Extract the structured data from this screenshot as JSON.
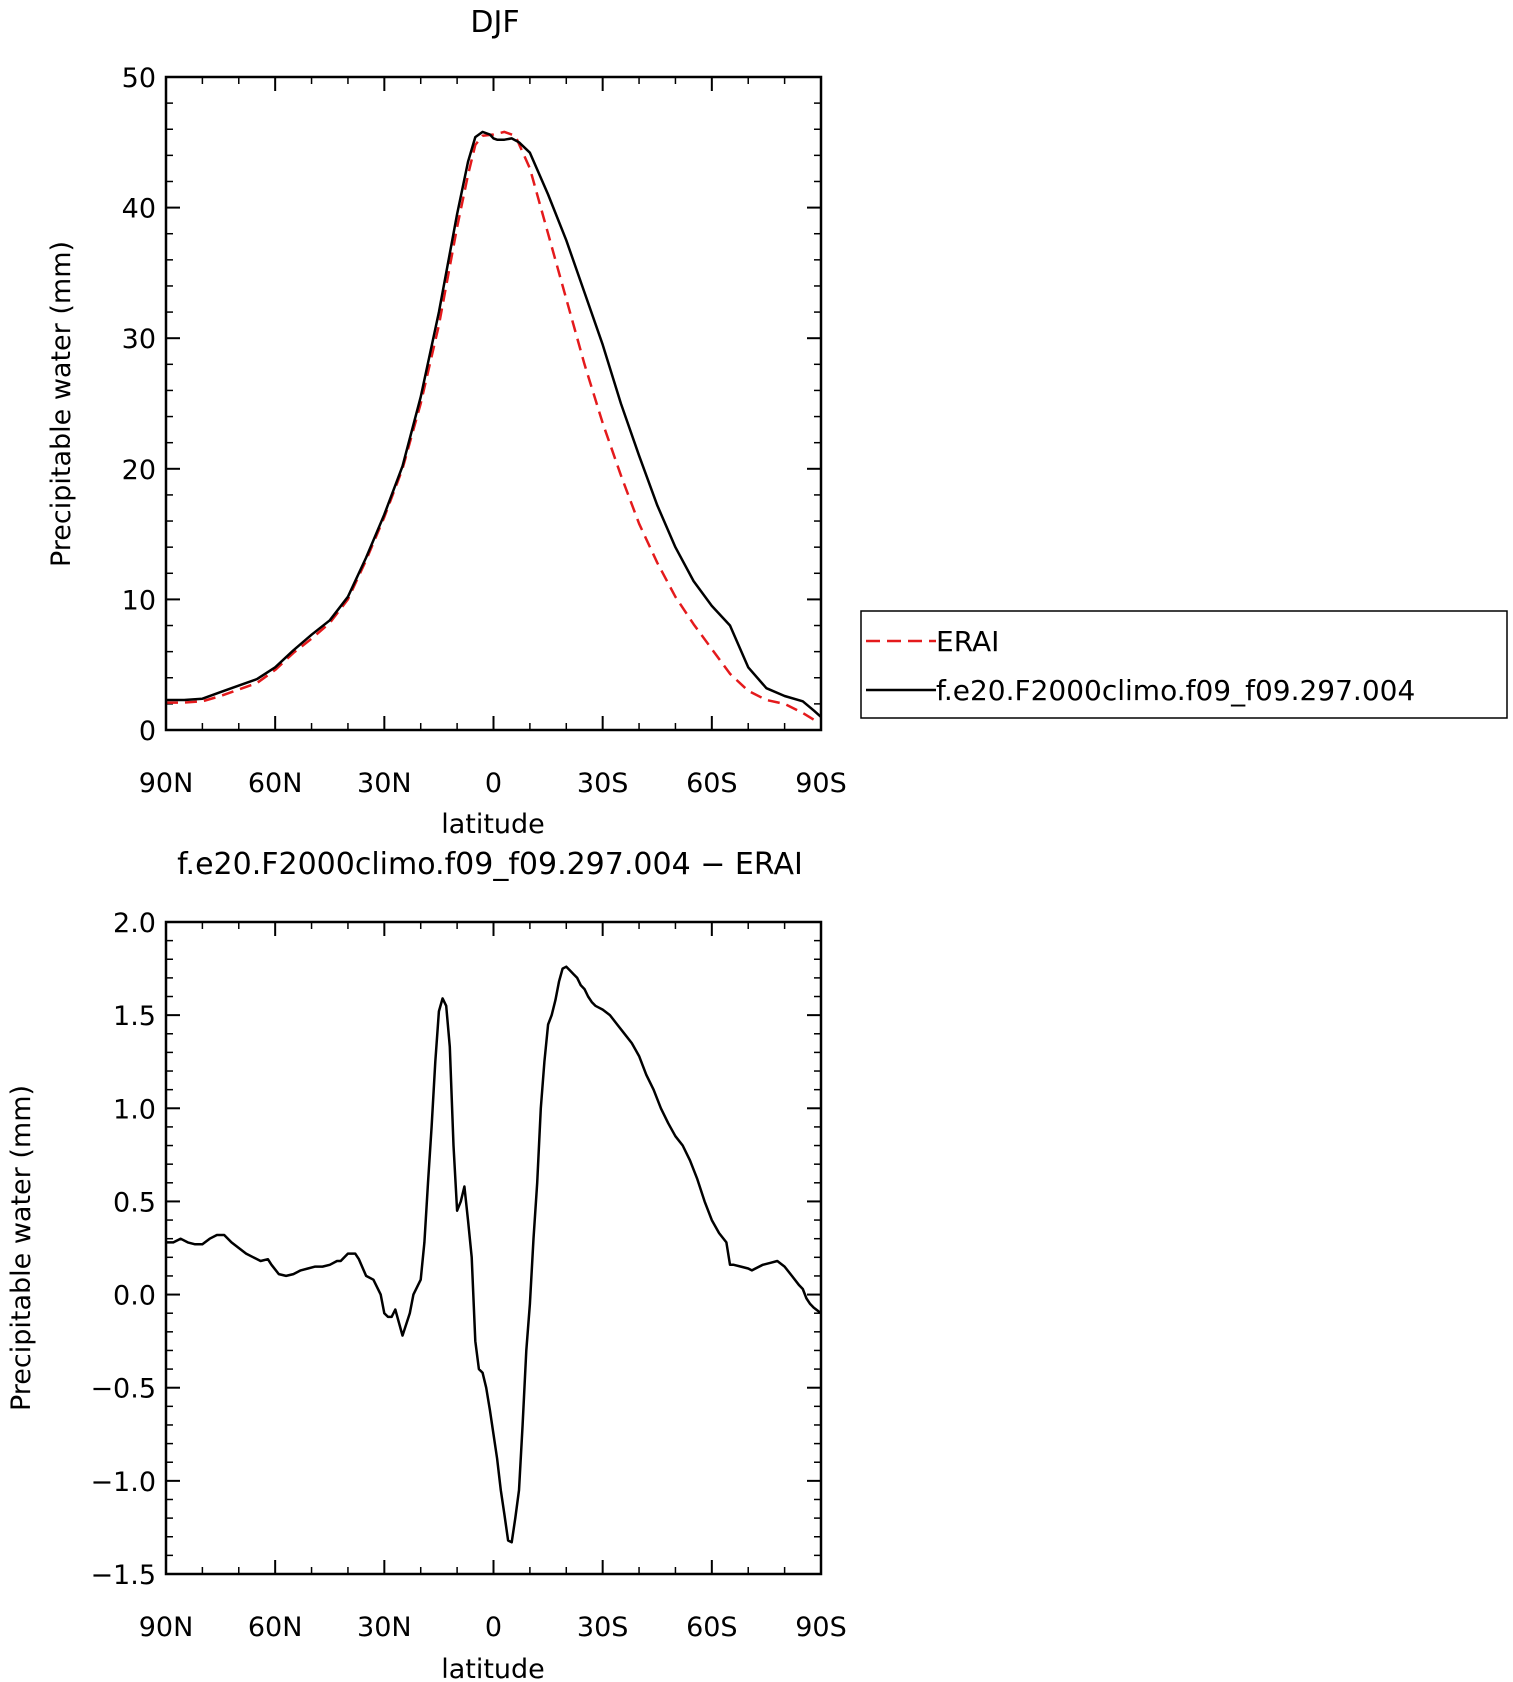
{
  "chart_data": [
    {
      "type": "line",
      "title": "DJF",
      "xlabel": "latitude",
      "ylabel": "Precipitable water (mm)",
      "xlim": [
        90,
        -90
      ],
      "ylim": [
        0,
        50
      ],
      "x_ticks": [
        90,
        60,
        30,
        0,
        -30,
        -60,
        -90
      ],
      "x_tick_labels": [
        "90N",
        "60N",
        "30N",
        "0",
        "30S",
        "60S",
        "90S"
      ],
      "y_ticks": [
        0,
        10,
        20,
        30,
        40,
        50
      ],
      "y_tick_labels": [
        "0",
        "10",
        "20",
        "30",
        "40",
        "50"
      ],
      "legend": {
        "placement": "right",
        "entries": [
          "ERAI",
          "f.e20.F2000climo.f09_f09.297.004"
        ]
      },
      "series": [
        {
          "name": "ERAI",
          "color": "#e41a1c",
          "dash": true,
          "x": [
            90,
            85,
            80,
            75,
            70,
            65,
            60,
            55,
            50,
            45,
            40,
            35,
            30,
            25,
            20,
            15,
            10,
            7,
            5,
            3,
            0,
            -3,
            -6,
            -10,
            -15,
            -20,
            -25,
            -30,
            -35,
            -40,
            -45,
            -50,
            -55,
            -60,
            -65,
            -70,
            -75,
            -80,
            -85,
            -88,
            -90
          ],
          "values": [
            2.1,
            2.1,
            2.2,
            2.6,
            3.1,
            3.6,
            4.6,
            5.9,
            7.0,
            8.2,
            10.0,
            13.0,
            16.3,
            20.0,
            25.0,
            31.0,
            38.5,
            42.5,
            44.8,
            45.5,
            45.6,
            45.8,
            45.5,
            43.0,
            38.0,
            33.0,
            28.0,
            23.5,
            19.5,
            15.8,
            12.8,
            10.2,
            8.1,
            6.2,
            4.3,
            3.0,
            2.3,
            2.0,
            1.3,
            0.8,
            0.7
          ]
        },
        {
          "name": "f.e20.F2000climo.f09_f09.297.004",
          "color": "#000000",
          "dash": false,
          "x": [
            90,
            85,
            80,
            75,
            70,
            65,
            60,
            55,
            50,
            45,
            40,
            35,
            30,
            25,
            20,
            15,
            10,
            7,
            5,
            3,
            1,
            0,
            -1,
            -3,
            -5,
            -7,
            -10,
            -15,
            -20,
            -25,
            -30,
            -35,
            -40,
            -45,
            -50,
            -55,
            -60,
            -65,
            -70,
            -75,
            -80,
            -85,
            -88,
            -90
          ],
          "values": [
            2.3,
            2.3,
            2.4,
            2.9,
            3.4,
            3.9,
            4.8,
            6.1,
            7.3,
            8.4,
            10.2,
            13.2,
            16.5,
            20.2,
            25.5,
            32.0,
            39.5,
            43.5,
            45.4,
            45.8,
            45.6,
            45.3,
            45.2,
            45.2,
            45.3,
            45.0,
            44.2,
            41.0,
            37.5,
            33.5,
            29.5,
            25.0,
            21.0,
            17.2,
            14.0,
            11.4,
            9.5,
            8.0,
            4.8,
            3.2,
            2.6,
            2.2,
            1.5,
            1.0
          ]
        }
      ]
    },
    {
      "type": "line",
      "title": "f.e20.F2000climo.f09_f09.297.004 − ERAI",
      "xlabel": "latitude",
      "ylabel": "Precipitable water (mm)",
      "xlim": [
        90,
        -90
      ],
      "ylim": [
        -1.5,
        2.0
      ],
      "x_ticks": [
        90,
        60,
        30,
        0,
        -30,
        -60,
        -90
      ],
      "x_tick_labels": [
        "90N",
        "60N",
        "30N",
        "0",
        "30S",
        "60S",
        "90S"
      ],
      "y_ticks": [
        -1.5,
        -1.0,
        -0.5,
        0.0,
        0.5,
        1.0,
        1.5,
        2.0
      ],
      "y_tick_labels": [
        "−1.5",
        "−1.0",
        "−0.5",
        "0.0",
        "0.5",
        "1.0",
        "1.5",
        "2.0"
      ],
      "series": [
        {
          "color": "#000000",
          "x": [
            90,
            88,
            86,
            84,
            82,
            80,
            78,
            76,
            74,
            72,
            70,
            68,
            66,
            64,
            62,
            61,
            59,
            57,
            55,
            53,
            51,
            49,
            47,
            45,
            43,
            42,
            40,
            38,
            37,
            35,
            33,
            31,
            30,
            29,
            28,
            27,
            25,
            23,
            22,
            20,
            19,
            18,
            17,
            16,
            15,
            14,
            13,
            12,
            11,
            10,
            9,
            8,
            7,
            6,
            5,
            4,
            3,
            2,
            1,
            0,
            -1,
            -2,
            -3,
            -4,
            -5,
            -6,
            -7,
            -8,
            -9,
            -10,
            -11,
            -12,
            -13,
            -14,
            -15,
            -16,
            -17,
            -18,
            -19,
            -20,
            -21,
            -22,
            -23,
            -24,
            -25,
            -26,
            -27,
            -28,
            -29,
            -30,
            -32,
            -34,
            -36,
            -38,
            -40,
            -42,
            -44,
            -46,
            -48,
            -50,
            -52,
            -54,
            -56,
            -58,
            -60,
            -62,
            -64,
            -65,
            -66,
            -68,
            -70,
            -71,
            -72,
            -74,
            -76,
            -78,
            -80,
            -82,
            -84,
            -85,
            -86,
            -87,
            -88,
            -90
          ],
          "values": [
            0.28,
            0.28,
            0.3,
            0.28,
            0.27,
            0.27,
            0.3,
            0.32,
            0.32,
            0.28,
            0.25,
            0.22,
            0.2,
            0.18,
            0.19,
            0.16,
            0.11,
            0.1,
            0.11,
            0.13,
            0.14,
            0.15,
            0.15,
            0.16,
            0.18,
            0.18,
            0.22,
            0.22,
            0.19,
            0.1,
            0.08,
            0.0,
            -0.1,
            -0.12,
            -0.12,
            -0.08,
            -0.22,
            -0.1,
            0.0,
            0.08,
            0.28,
            0.6,
            0.9,
            1.25,
            1.52,
            1.59,
            1.55,
            1.33,
            0.8,
            0.45,
            0.5,
            0.58,
            0.4,
            0.2,
            -0.25,
            -0.4,
            -0.42,
            -0.5,
            -0.62,
            -0.75,
            -0.88,
            -1.05,
            -1.18,
            -1.32,
            -1.33,
            -1.2,
            -1.05,
            -0.7,
            -0.3,
            -0.05,
            0.3,
            0.6,
            1.0,
            1.25,
            1.45,
            1.5,
            1.58,
            1.68,
            1.75,
            1.76,
            1.74,
            1.72,
            1.7,
            1.66,
            1.64,
            1.6,
            1.57,
            1.55,
            1.54,
            1.53,
            1.5,
            1.45,
            1.4,
            1.35,
            1.28,
            1.18,
            1.1,
            1.0,
            0.92,
            0.85,
            0.8,
            0.72,
            0.62,
            0.5,
            0.4,
            0.33,
            0.28,
            0.16,
            0.16,
            0.15,
            0.14,
            0.13,
            0.14,
            0.16,
            0.17,
            0.18,
            0.15,
            0.1,
            0.05,
            0.03,
            -0.02,
            -0.05,
            -0.07,
            -0.1
          ]
        }
      ]
    }
  ]
}
